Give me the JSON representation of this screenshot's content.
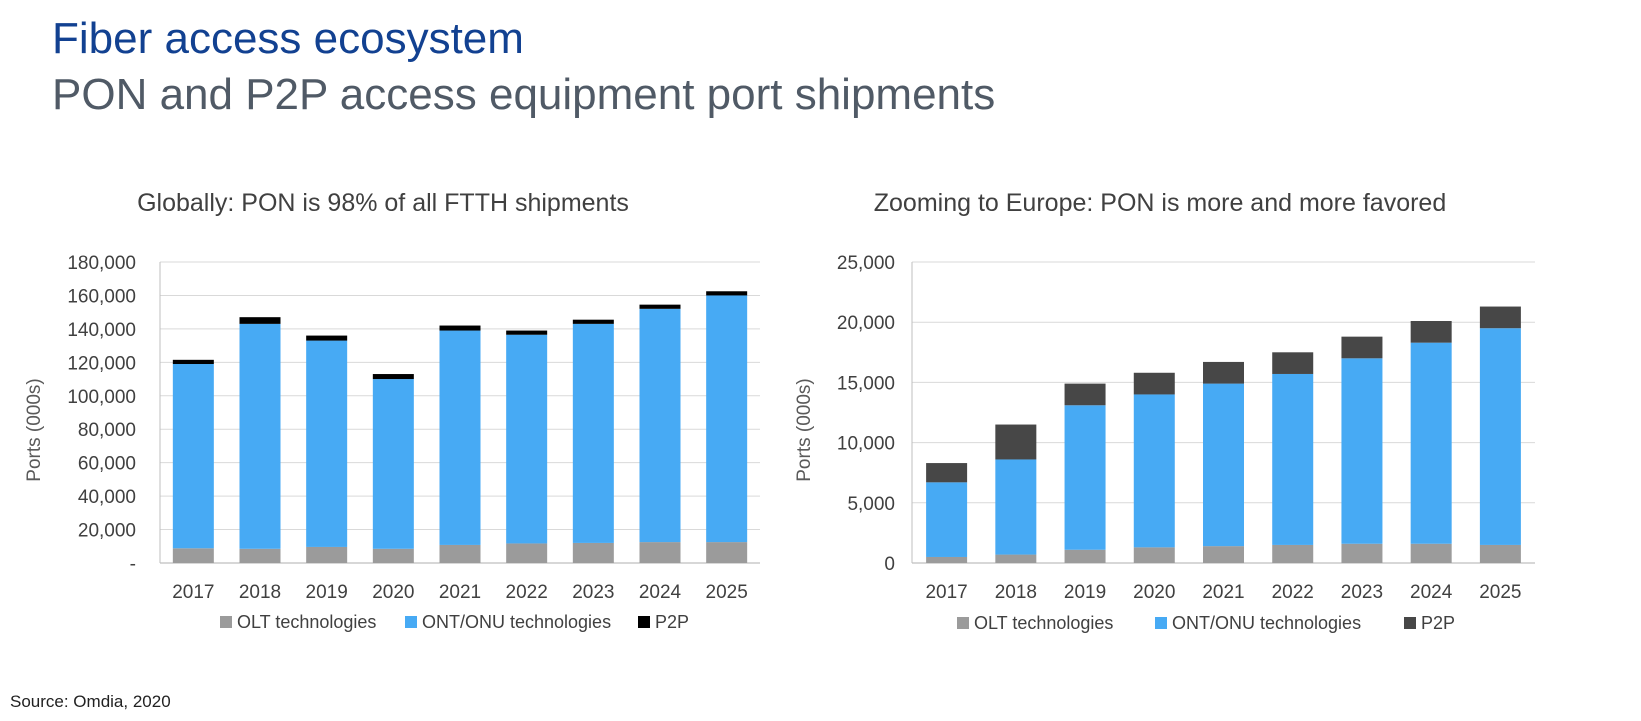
{
  "header": {
    "title": "Fiber access ecosystem",
    "subtitle": "PON and P2P access equipment port shipments"
  },
  "source": "Source: Omdia, 2020",
  "colors": {
    "olt": "#9b9b9b",
    "ont": "#47aaf4",
    "p2p_global": "#000000",
    "p2p_europe": "#474747",
    "title": "#124191"
  },
  "chart_data": [
    {
      "type": "bar",
      "stacked": true,
      "title": "Globally: PON is 98% of all FTTH shipments",
      "ylabel": "Ports (000s)",
      "xlabel": "",
      "categories": [
        "2017",
        "2018",
        "2019",
        "2020",
        "2021",
        "2022",
        "2023",
        "2024",
        "2025"
      ],
      "ylim": [
        0,
        180000
      ],
      "yticks": [
        "-",
        "20,000",
        "40,000",
        "60,000",
        "80,000",
        "100,000",
        "120,000",
        "140,000",
        "160,000",
        "180,000"
      ],
      "grid": true,
      "legend": "bottom",
      "series": [
        {
          "name": "OLT technologies",
          "values": [
            8800,
            8500,
            9600,
            8500,
            10800,
            11700,
            12000,
            12500,
            12500
          ]
        },
        {
          "name": "ONT/ONU technologies",
          "values": [
            110200,
            134500,
            123400,
            101500,
            128200,
            124800,
            131000,
            139500,
            147500
          ]
        },
        {
          "name": "P2P",
          "values": [
            2500,
            4000,
            3000,
            3000,
            3000,
            2500,
            2500,
            2500,
            2500
          ]
        }
      ]
    },
    {
      "type": "bar",
      "stacked": true,
      "title": "Zooming to Europe: PON is more and more favored",
      "ylabel": "Ports (000s)",
      "xlabel": "",
      "categories": [
        "2017",
        "2018",
        "2019",
        "2020",
        "2021",
        "2022",
        "2023",
        "2024",
        "2025"
      ],
      "ylim": [
        0,
        25000
      ],
      "yticks": [
        "0",
        "5,000",
        "10,000",
        "15,000",
        "20,000",
        "25,000"
      ],
      "grid": true,
      "legend": "bottom",
      "series": [
        {
          "name": "OLT technologies",
          "values": [
            500,
            700,
            1100,
            1300,
            1400,
            1500,
            1600,
            1600,
            1500
          ]
        },
        {
          "name": "ONT/ONU technologies",
          "values": [
            6200,
            7900,
            12000,
            12700,
            13500,
            14200,
            15400,
            16700,
            18000
          ]
        },
        {
          "name": "P2P",
          "values": [
            1600,
            2900,
            1800,
            1800,
            1800,
            1800,
            1800,
            1800,
            1800
          ]
        }
      ]
    }
  ]
}
